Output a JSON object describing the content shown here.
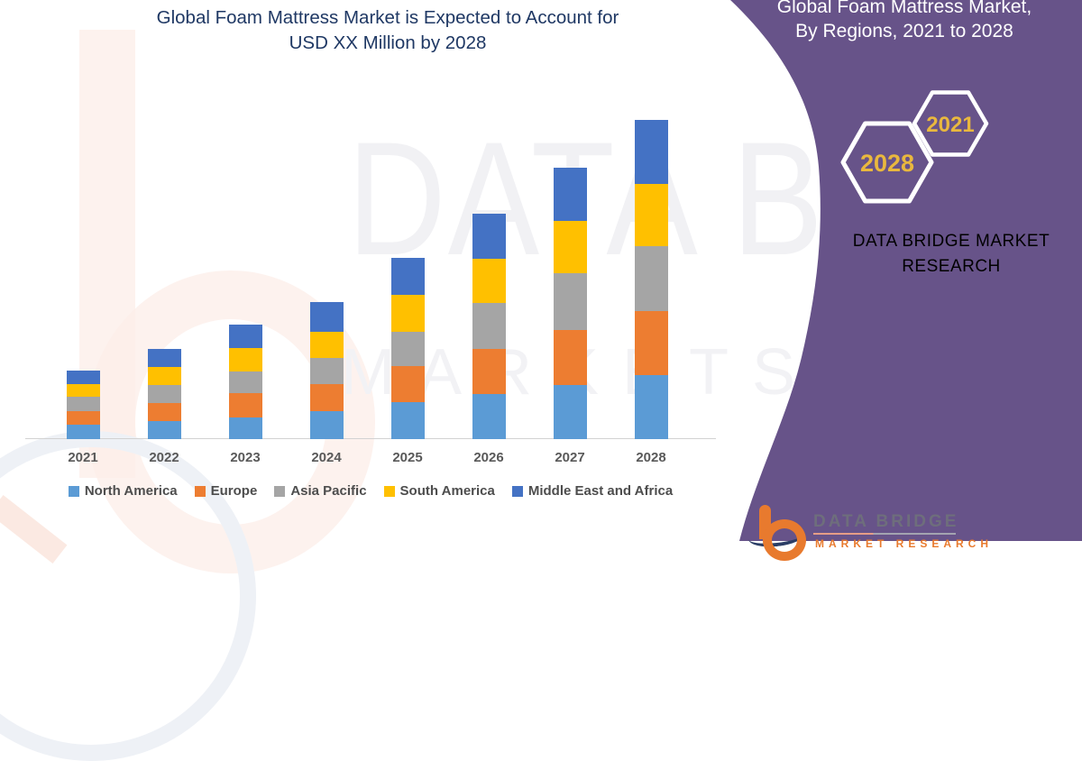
{
  "colors": {
    "title_navy": "#1F3864",
    "axis_label_gray": "#595959",
    "panel_purple": "#675389",
    "panel_gold": "#E5B64C",
    "hex_gold": "#E9B83E",
    "logo_orange": "#E87A2E"
  },
  "main_title": {
    "line1": "Global Foam Mattress Market is Expected to Account for",
    "line2": "USD XX Million by 2028"
  },
  "chart_data": {
    "type": "bar",
    "stacked": true,
    "title": "Global Foam Mattress Market is Expected to Account for USD XX Million by 2028",
    "values_unit": "USD XX Million (values undisclosed, proportional)",
    "categories": [
      "2021",
      "2022",
      "2023",
      "2024",
      "2025",
      "2026",
      "2027",
      "2028"
    ],
    "series": [
      {
        "name": "North America",
        "color": "#5B9BD5",
        "values": [
          16,
          20,
          24,
          31,
          41,
          50,
          60,
          71
        ]
      },
      {
        "name": "Europe",
        "color": "#ED7D31",
        "values": [
          15,
          20,
          27,
          30,
          40,
          50,
          61,
          71
        ]
      },
      {
        "name": "Asia Pacific",
        "color": "#A5A5A5",
        "values": [
          16,
          20,
          24,
          29,
          38,
          51,
          63,
          72
        ]
      },
      {
        "name": "South America",
        "color": "#FFC000",
        "values": [
          14,
          20,
          26,
          29,
          41,
          49,
          58,
          69
        ]
      },
      {
        "name": "Middle East and Africa",
        "color": "#4472C4",
        "values": [
          15,
          20,
          26,
          33,
          41,
          50,
          59,
          71
        ]
      }
    ],
    "totals": [
      76,
      100,
      127,
      152,
      201,
      250,
      301,
      354
    ],
    "legend_position": "bottom",
    "value_axis_visible": false,
    "gridlines": false
  },
  "side_panel": {
    "bg_color": "#675389",
    "title_line1": "Global Foam Mattress Market,",
    "title_line2": "By Regions, 2021 to 2028",
    "hexagons": [
      {
        "label": "2028"
      },
      {
        "label": "2021"
      }
    ],
    "brand_line1": "DATA BRIDGE MARKET",
    "brand_line2": "RESEARCH"
  },
  "watermark": {
    "big_letter": "b",
    "text_line1": "DATA BRIDGE",
    "text_line2": "MARKETS&RESEARCH"
  },
  "footer_logo": {
    "brand": "DATA BRIDGE",
    "sub": "MARKET RESEARCH"
  }
}
